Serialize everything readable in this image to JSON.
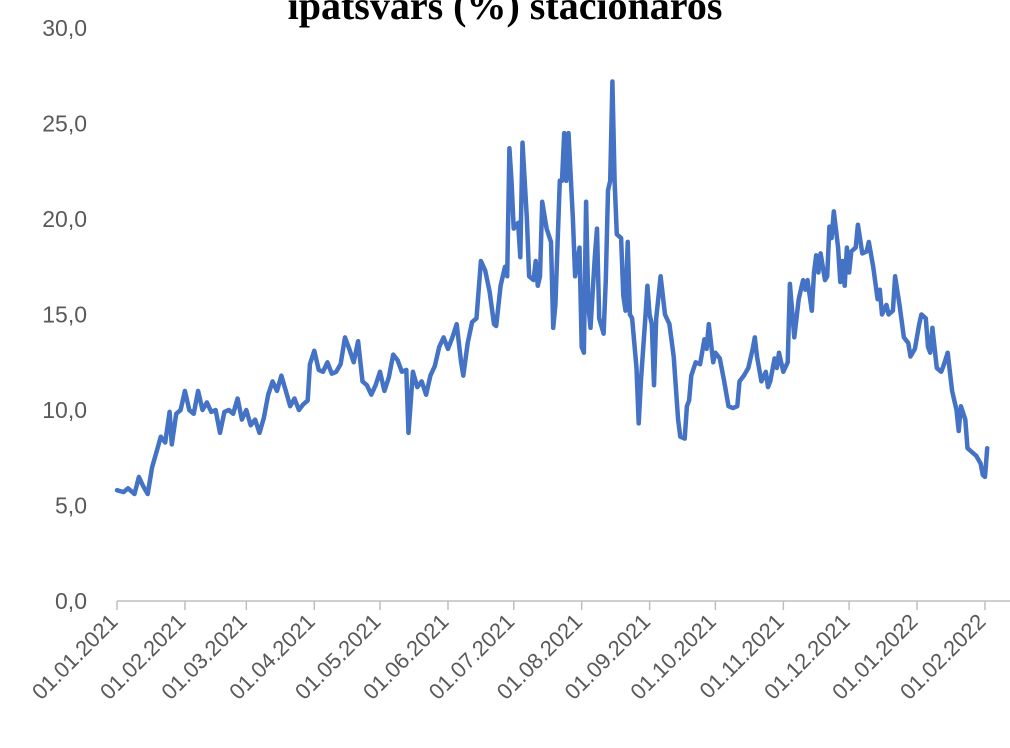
{
  "chart_data": {
    "type": "line",
    "title": "īpatsvars (%) stacionāros",
    "xlabel": "",
    "ylabel": "",
    "ylim": [
      0,
      30
    ],
    "y_ticks": [
      "0,0",
      "5,0",
      "10,0",
      "15,0",
      "20,0",
      "25,0",
      "30,0"
    ],
    "x_ticks": [
      "01.01.2021",
      "01.02.2021",
      "01.03.2021",
      "01.04.2021",
      "01.05.2021",
      "01.06.2021",
      "01.07.2021",
      "01.08.2021",
      "01.09.2021",
      "01.10.2021",
      "01.11.2021",
      "01.12.2021",
      "01.01.2022",
      "01.02.2022"
    ],
    "grid": false,
    "legend": "none",
    "series_color": "#4472C4",
    "series": [
      {
        "values": [
          [
            "2021-01-01",
            5.8
          ],
          [
            "2021-01-04",
            5.7
          ],
          [
            "2021-01-06",
            5.9
          ],
          [
            "2021-01-09",
            5.6
          ],
          [
            "2021-01-11",
            6.5
          ],
          [
            "2021-01-13",
            6.0
          ],
          [
            "2021-01-15",
            5.6
          ],
          [
            "2021-01-17",
            7.0
          ],
          [
            "2021-01-19",
            7.8
          ],
          [
            "2021-01-21",
            8.6
          ],
          [
            "2021-01-23",
            8.3
          ],
          [
            "2021-01-25",
            9.9
          ],
          [
            "2021-01-26",
            8.2
          ],
          [
            "2021-01-28",
            9.8
          ],
          [
            "2021-01-30",
            10.0
          ],
          [
            "2021-02-01",
            11.0
          ],
          [
            "2021-02-03",
            10.0
          ],
          [
            "2021-02-05",
            9.8
          ],
          [
            "2021-02-07",
            11.0
          ],
          [
            "2021-02-09",
            10.0
          ],
          [
            "2021-02-11",
            10.4
          ],
          [
            "2021-02-13",
            9.9
          ],
          [
            "2021-02-15",
            10.0
          ],
          [
            "2021-02-17",
            8.8
          ],
          [
            "2021-02-19",
            9.9
          ],
          [
            "2021-02-21",
            10.0
          ],
          [
            "2021-02-23",
            9.8
          ],
          [
            "2021-02-25",
            10.6
          ],
          [
            "2021-02-27",
            9.5
          ],
          [
            "2021-03-01",
            10.0
          ],
          [
            "2021-03-03",
            9.2
          ],
          [
            "2021-03-05",
            9.5
          ],
          [
            "2021-03-07",
            8.8
          ],
          [
            "2021-03-09",
            9.6
          ],
          [
            "2021-03-11",
            10.8
          ],
          [
            "2021-03-13",
            11.5
          ],
          [
            "2021-03-15",
            11.0
          ],
          [
            "2021-03-17",
            11.8
          ],
          [
            "2021-03-19",
            11.0
          ],
          [
            "2021-03-21",
            10.2
          ],
          [
            "2021-03-23",
            10.6
          ],
          [
            "2021-03-25",
            10.0
          ],
          [
            "2021-03-27",
            10.3
          ],
          [
            "2021-03-29",
            10.5
          ],
          [
            "2021-03-30",
            12.4
          ],
          [
            "2021-04-01",
            13.1
          ],
          [
            "2021-04-03",
            12.1
          ],
          [
            "2021-04-05",
            12.0
          ],
          [
            "2021-04-07",
            12.5
          ],
          [
            "2021-04-09",
            11.9
          ],
          [
            "2021-04-11",
            12.0
          ],
          [
            "2021-04-13",
            12.4
          ],
          [
            "2021-04-15",
            13.8
          ],
          [
            "2021-04-17",
            13.2
          ],
          [
            "2021-04-19",
            12.5
          ],
          [
            "2021-04-21",
            13.6
          ],
          [
            "2021-04-23",
            11.5
          ],
          [
            "2021-04-25",
            11.3
          ],
          [
            "2021-04-27",
            10.8
          ],
          [
            "2021-04-29",
            11.3
          ],
          [
            "2021-05-01",
            12.0
          ],
          [
            "2021-05-03",
            11.0
          ],
          [
            "2021-05-05",
            11.7
          ],
          [
            "2021-05-07",
            12.9
          ],
          [
            "2021-05-09",
            12.6
          ],
          [
            "2021-05-11",
            12.0
          ],
          [
            "2021-05-13",
            12.1
          ],
          [
            "2021-05-14",
            8.8
          ],
          [
            "2021-05-16",
            12.0
          ],
          [
            "2021-05-18",
            11.2
          ],
          [
            "2021-05-20",
            11.5
          ],
          [
            "2021-05-22",
            10.8
          ],
          [
            "2021-05-24",
            11.8
          ],
          [
            "2021-05-26",
            12.3
          ],
          [
            "2021-05-28",
            13.3
          ],
          [
            "2021-05-30",
            13.8
          ],
          [
            "2021-06-01",
            13.2
          ],
          [
            "2021-06-03",
            13.8
          ],
          [
            "2021-06-05",
            14.5
          ],
          [
            "2021-06-07",
            12.5
          ],
          [
            "2021-06-08",
            11.8
          ],
          [
            "2021-06-10",
            13.5
          ],
          [
            "2021-06-12",
            14.6
          ],
          [
            "2021-06-14",
            14.8
          ],
          [
            "2021-06-16",
            17.8
          ],
          [
            "2021-06-18",
            17.3
          ],
          [
            "2021-06-20",
            16.2
          ],
          [
            "2021-06-22",
            14.5
          ],
          [
            "2021-06-23",
            14.4
          ],
          [
            "2021-06-25",
            16.5
          ],
          [
            "2021-06-27",
            17.5
          ],
          [
            "2021-06-28",
            17.0
          ],
          [
            "2021-06-29",
            23.7
          ],
          [
            "2021-06-30",
            22.0
          ],
          [
            "2021-07-01",
            19.5
          ],
          [
            "2021-07-03",
            19.8
          ],
          [
            "2021-07-04",
            18.0
          ],
          [
            "2021-07-05",
            24.0
          ],
          [
            "2021-07-06",
            22.0
          ],
          [
            "2021-07-07",
            20.0
          ],
          [
            "2021-07-08",
            17.0
          ],
          [
            "2021-07-10",
            16.8
          ],
          [
            "2021-07-11",
            17.8
          ],
          [
            "2021-07-12",
            16.5
          ],
          [
            "2021-07-13",
            17.0
          ],
          [
            "2021-07-14",
            20.9
          ],
          [
            "2021-07-16",
            19.5
          ],
          [
            "2021-07-18",
            18.8
          ],
          [
            "2021-07-19",
            14.3
          ],
          [
            "2021-07-20",
            15.5
          ],
          [
            "2021-07-22",
            22.0
          ],
          [
            "2021-07-23",
            22.0
          ],
          [
            "2021-07-24",
            24.5
          ],
          [
            "2021-07-25",
            22.0
          ],
          [
            "2021-07-26",
            24.5
          ],
          [
            "2021-07-28",
            20.0
          ],
          [
            "2021-07-29",
            17.0
          ],
          [
            "2021-07-31",
            18.5
          ],
          [
            "2021-08-01",
            13.3
          ],
          [
            "2021-08-02",
            13.0
          ],
          [
            "2021-08-03",
            20.9
          ],
          [
            "2021-08-04",
            15.5
          ],
          [
            "2021-08-05",
            14.3
          ],
          [
            "2021-08-07",
            18.0
          ],
          [
            "2021-08-08",
            19.5
          ],
          [
            "2021-08-09",
            14.8
          ],
          [
            "2021-08-11",
            14.0
          ],
          [
            "2021-08-12",
            16.8
          ],
          [
            "2021-08-13",
            21.5
          ],
          [
            "2021-08-14",
            22.0
          ],
          [
            "2021-08-15",
            27.2
          ],
          [
            "2021-08-16",
            22.0
          ],
          [
            "2021-08-17",
            19.2
          ],
          [
            "2021-08-19",
            19.0
          ],
          [
            "2021-08-20",
            16.0
          ],
          [
            "2021-08-21",
            15.2
          ],
          [
            "2021-08-22",
            18.8
          ],
          [
            "2021-08-23",
            15.0
          ],
          [
            "2021-08-24",
            14.8
          ],
          [
            "2021-08-26",
            12.2
          ],
          [
            "2021-08-27",
            9.3
          ],
          [
            "2021-08-28",
            11.5
          ],
          [
            "2021-08-30",
            14.8
          ],
          [
            "2021-08-31",
            16.5
          ],
          [
            "2021-09-01",
            15.0
          ],
          [
            "2021-09-02",
            14.5
          ],
          [
            "2021-09-03",
            11.3
          ],
          [
            "2021-09-04",
            14.8
          ],
          [
            "2021-09-06",
            17.0
          ],
          [
            "2021-09-08",
            15.0
          ],
          [
            "2021-09-10",
            14.5
          ],
          [
            "2021-09-12",
            12.8
          ],
          [
            "2021-09-14",
            9.5
          ],
          [
            "2021-09-15",
            8.6
          ],
          [
            "2021-09-17",
            8.5
          ],
          [
            "2021-09-18",
            10.2
          ],
          [
            "2021-09-19",
            10.5
          ],
          [
            "2021-09-20",
            11.8
          ],
          [
            "2021-09-22",
            12.5
          ],
          [
            "2021-09-24",
            12.4
          ],
          [
            "2021-09-26",
            13.7
          ],
          [
            "2021-09-27",
            13.2
          ],
          [
            "2021-09-28",
            14.5
          ],
          [
            "2021-09-30",
            12.5
          ],
          [
            "2021-10-01",
            13.0
          ],
          [
            "2021-10-03",
            12.7
          ],
          [
            "2021-10-05",
            11.5
          ],
          [
            "2021-10-07",
            10.2
          ],
          [
            "2021-10-09",
            10.1
          ],
          [
            "2021-10-11",
            10.2
          ],
          [
            "2021-10-12",
            11.5
          ],
          [
            "2021-10-14",
            11.8
          ],
          [
            "2021-10-16",
            12.2
          ],
          [
            "2021-10-18",
            13.2
          ],
          [
            "2021-10-19",
            13.8
          ],
          [
            "2021-10-20",
            12.8
          ],
          [
            "2021-10-22",
            11.5
          ],
          [
            "2021-10-24",
            12.0
          ],
          [
            "2021-10-25",
            11.2
          ],
          [
            "2021-10-26",
            11.5
          ],
          [
            "2021-10-28",
            12.7
          ],
          [
            "2021-10-29",
            12.2
          ],
          [
            "2021-10-30",
            13.0
          ],
          [
            "2021-11-01",
            12.0
          ],
          [
            "2021-11-03",
            12.5
          ],
          [
            "2021-11-04",
            16.6
          ],
          [
            "2021-11-05",
            15.2
          ],
          [
            "2021-11-06",
            13.8
          ],
          [
            "2021-11-08",
            15.8
          ],
          [
            "2021-11-10",
            16.8
          ],
          [
            "2021-11-11",
            16.3
          ],
          [
            "2021-11-12",
            16.8
          ],
          [
            "2021-11-14",
            15.2
          ],
          [
            "2021-11-15",
            17.2
          ],
          [
            "2021-11-16",
            18.1
          ],
          [
            "2021-11-17",
            17.2
          ],
          [
            "2021-11-18",
            18.2
          ],
          [
            "2021-11-20",
            16.8
          ],
          [
            "2021-11-21",
            17.0
          ],
          [
            "2021-11-22",
            19.6
          ],
          [
            "2021-11-23",
            19.0
          ],
          [
            "2021-11-24",
            20.4
          ],
          [
            "2021-11-26",
            18.5
          ],
          [
            "2021-11-27",
            16.7
          ],
          [
            "2021-11-28",
            17.8
          ],
          [
            "2021-11-29",
            16.5
          ],
          [
            "2021-11-30",
            18.5
          ],
          [
            "2021-12-01",
            17.2
          ],
          [
            "2021-12-02",
            18.3
          ],
          [
            "2021-12-04",
            18.5
          ],
          [
            "2021-12-05",
            19.7
          ],
          [
            "2021-12-07",
            18.2
          ],
          [
            "2021-12-09",
            18.3
          ],
          [
            "2021-12-10",
            18.8
          ],
          [
            "2021-12-12",
            17.5
          ],
          [
            "2021-12-14",
            15.8
          ],
          [
            "2021-12-15",
            16.3
          ],
          [
            "2021-12-16",
            15.0
          ],
          [
            "2021-12-18",
            15.5
          ],
          [
            "2021-12-19",
            15.0
          ],
          [
            "2021-12-21",
            15.2
          ],
          [
            "2021-12-22",
            17.0
          ],
          [
            "2021-12-24",
            15.5
          ],
          [
            "2021-12-26",
            13.8
          ],
          [
            "2021-12-28",
            13.5
          ],
          [
            "2021-12-29",
            12.8
          ],
          [
            "2021-12-31",
            13.2
          ],
          [
            "2022-01-02",
            14.5
          ],
          [
            "2022-01-03",
            15.0
          ],
          [
            "2022-01-05",
            14.8
          ],
          [
            "2022-01-06",
            13.3
          ],
          [
            "2022-01-07",
            13.0
          ],
          [
            "2022-01-08",
            14.3
          ],
          [
            "2022-01-10",
            12.2
          ],
          [
            "2022-01-12",
            12.0
          ],
          [
            "2022-01-13",
            12.3
          ],
          [
            "2022-01-15",
            13.0
          ],
          [
            "2022-01-17",
            11.0
          ],
          [
            "2022-01-19",
            10.0
          ],
          [
            "2022-01-20",
            8.9
          ],
          [
            "2022-01-21",
            10.2
          ],
          [
            "2022-01-23",
            9.5
          ],
          [
            "2022-01-24",
            8.0
          ],
          [
            "2022-01-26",
            7.8
          ],
          [
            "2022-01-28",
            7.6
          ],
          [
            "2022-01-30",
            7.2
          ],
          [
            "2022-01-31",
            6.6
          ],
          [
            "2022-02-01",
            6.5
          ],
          [
            "2022-02-02",
            8.0
          ]
        ]
      }
    ]
  }
}
